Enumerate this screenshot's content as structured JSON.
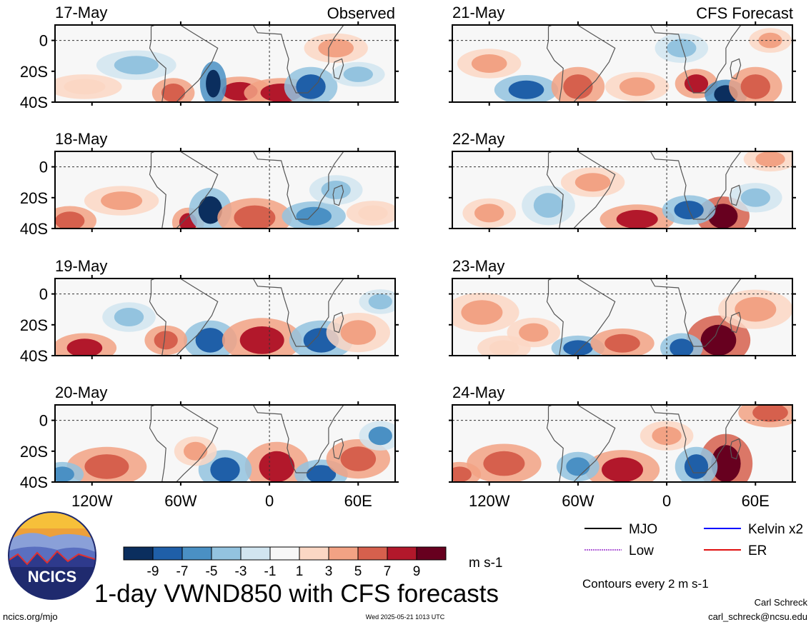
{
  "figure": {
    "title": "1-day VWND850 with CFS forecasts",
    "left_column_label": "Observed",
    "right_column_label": "CFS Forecast",
    "site_link": "ncics.org/mjo",
    "timestamp": "Wed 2025-05-21 1013 UTC",
    "author": "Carl Schreck",
    "email": "carl_schreck@ncsu.edu",
    "contour_note": "Contours every 2 m s-1",
    "logo_text": "NCICS"
  },
  "chart_data": {
    "type": "heatmap",
    "variable": "VWND850",
    "units": "m s-1",
    "x_ticks": [
      "120W",
      "60W",
      "0",
      "60E"
    ],
    "x_tick_values": [
      -120,
      -60,
      0,
      60
    ],
    "xlim": [
      -145,
      85
    ],
    "y_ticks": [
      "0",
      "20S",
      "40S"
    ],
    "y_tick_values": [
      0,
      -20,
      -40
    ],
    "ylim": [
      -40,
      10
    ],
    "colorbar": {
      "ticks": [
        "-9",
        "-7",
        "-5",
        "-3",
        "-1",
        "1",
        "3",
        "5",
        "7",
        "9"
      ],
      "colors": [
        "#0b2e5e",
        "#1f5fa8",
        "#4a90c4",
        "#93c3df",
        "#d1e5f0",
        "#f7f7f7",
        "#fbd7c4",
        "#f2a284",
        "#d6604d",
        "#b2182b",
        "#67001f"
      ],
      "units": "m s-1"
    },
    "legend": [
      {
        "name": "MJO",
        "color": "#000000",
        "style": "solid"
      },
      {
        "name": "Kelvin x2",
        "color": "#0000ff",
        "style": "solid"
      },
      {
        "name": "Low",
        "color": "#b05fd8",
        "style": "dashed"
      },
      {
        "name": "ER",
        "color": "#e01010",
        "style": "solid"
      }
    ],
    "panels": [
      {
        "date": "17-May",
        "source": "Observed",
        "blobs": [
          [
            -20,
            -33,
            12,
            6,
            8
          ],
          [
            8,
            -34,
            14,
            6,
            9
          ],
          [
            -38,
            -28,
            5,
            9,
            -10
          ],
          [
            28,
            -30,
            10,
            8,
            -8
          ],
          [
            -65,
            -34,
            8,
            6,
            7
          ],
          [
            -90,
            -16,
            15,
            6,
            -3
          ],
          [
            45,
            -5,
            12,
            6,
            4
          ],
          [
            60,
            -22,
            10,
            5,
            -4
          ],
          [
            -125,
            -30,
            14,
            5,
            3
          ]
        ]
      },
      {
        "date": "18-May",
        "source": "Observed",
        "blobs": [
          [
            -55,
            -36,
            6,
            6,
            9
          ],
          [
            -40,
            -28,
            8,
            9,
            -9
          ],
          [
            -10,
            -33,
            14,
            8,
            7
          ],
          [
            30,
            -32,
            12,
            6,
            -6
          ],
          [
            -135,
            -35,
            10,
            6,
            6
          ],
          [
            -100,
            -22,
            14,
            6,
            4
          ],
          [
            45,
            -15,
            10,
            6,
            -3
          ],
          [
            70,
            -30,
            10,
            5,
            3
          ]
        ]
      },
      {
        "date": "19-May",
        "source": "Observed",
        "blobs": [
          [
            -125,
            -35,
            12,
            6,
            8
          ],
          [
            -40,
            -30,
            10,
            8,
            -7
          ],
          [
            -5,
            -30,
            15,
            9,
            8
          ],
          [
            35,
            -30,
            12,
            8,
            -8
          ],
          [
            60,
            -25,
            12,
            8,
            5
          ],
          [
            -95,
            -15,
            10,
            6,
            -3
          ],
          [
            -70,
            -30,
            8,
            6,
            6
          ],
          [
            75,
            -5,
            8,
            5,
            -4
          ]
        ]
      },
      {
        "date": "20-May",
        "source": "Observed",
        "blobs": [
          [
            5,
            -30,
            12,
            10,
            9
          ],
          [
            -30,
            -32,
            10,
            8,
            -7
          ],
          [
            -110,
            -30,
            15,
            8,
            6
          ],
          [
            -50,
            -20,
            8,
            6,
            4
          ],
          [
            35,
            -35,
            10,
            6,
            -8
          ],
          [
            60,
            -25,
            12,
            8,
            6
          ],
          [
            75,
            -10,
            8,
            6,
            -5
          ],
          [
            -140,
            -35,
            8,
            5,
            -6
          ]
        ]
      },
      {
        "date": "21-May",
        "source": "CFS Forecast",
        "blobs": [
          [
            20,
            -28,
            8,
            6,
            9
          ],
          [
            40,
            -35,
            8,
            6,
            -10
          ],
          [
            -95,
            -32,
            12,
            6,
            -7
          ],
          [
            -60,
            -30,
            10,
            8,
            6
          ],
          [
            -20,
            -30,
            12,
            6,
            5
          ],
          [
            60,
            -30,
            10,
            8,
            6
          ],
          [
            -120,
            -15,
            12,
            6,
            4
          ],
          [
            10,
            -5,
            10,
            6,
            -4
          ],
          [
            70,
            0,
            8,
            5,
            5
          ]
        ]
      },
      {
        "date": "22-May",
        "source": "CFS Forecast",
        "blobs": [
          [
            38,
            -32,
            10,
            8,
            10
          ],
          [
            -20,
            -34,
            14,
            6,
            9
          ],
          [
            15,
            -28,
            10,
            6,
            -7
          ],
          [
            -80,
            -25,
            10,
            8,
            -4
          ],
          [
            -120,
            -30,
            10,
            6,
            4
          ],
          [
            60,
            -20,
            10,
            6,
            -4
          ],
          [
            -50,
            -10,
            12,
            6,
            4
          ],
          [
            70,
            5,
            10,
            5,
            5
          ]
        ]
      },
      {
        "date": "23-May",
        "source": "CFS Forecast",
        "blobs": [
          [
            35,
            -30,
            12,
            10,
            10
          ],
          [
            10,
            -35,
            8,
            6,
            -8
          ],
          [
            -60,
            -35,
            10,
            5,
            -7
          ],
          [
            -30,
            -32,
            12,
            6,
            7
          ],
          [
            -125,
            -12,
            14,
            8,
            5
          ],
          [
            -90,
            -25,
            10,
            6,
            4
          ],
          [
            60,
            -10,
            14,
            8,
            4
          ],
          [
            -110,
            -35,
            10,
            5,
            3
          ]
        ]
      },
      {
        "date": "24-May",
        "source": "CFS Forecast",
        "blobs": [
          [
            -30,
            -32,
            14,
            8,
            9
          ],
          [
            40,
            -28,
            10,
            12,
            10
          ],
          [
            20,
            -30,
            8,
            8,
            -8
          ],
          [
            -110,
            -28,
            14,
            8,
            6
          ],
          [
            -60,
            -30,
            8,
            6,
            -6
          ],
          [
            70,
            5,
            12,
            6,
            7
          ],
          [
            -140,
            -35,
            8,
            5,
            6
          ],
          [
            0,
            -10,
            10,
            6,
            4
          ]
        ]
      }
    ]
  }
}
